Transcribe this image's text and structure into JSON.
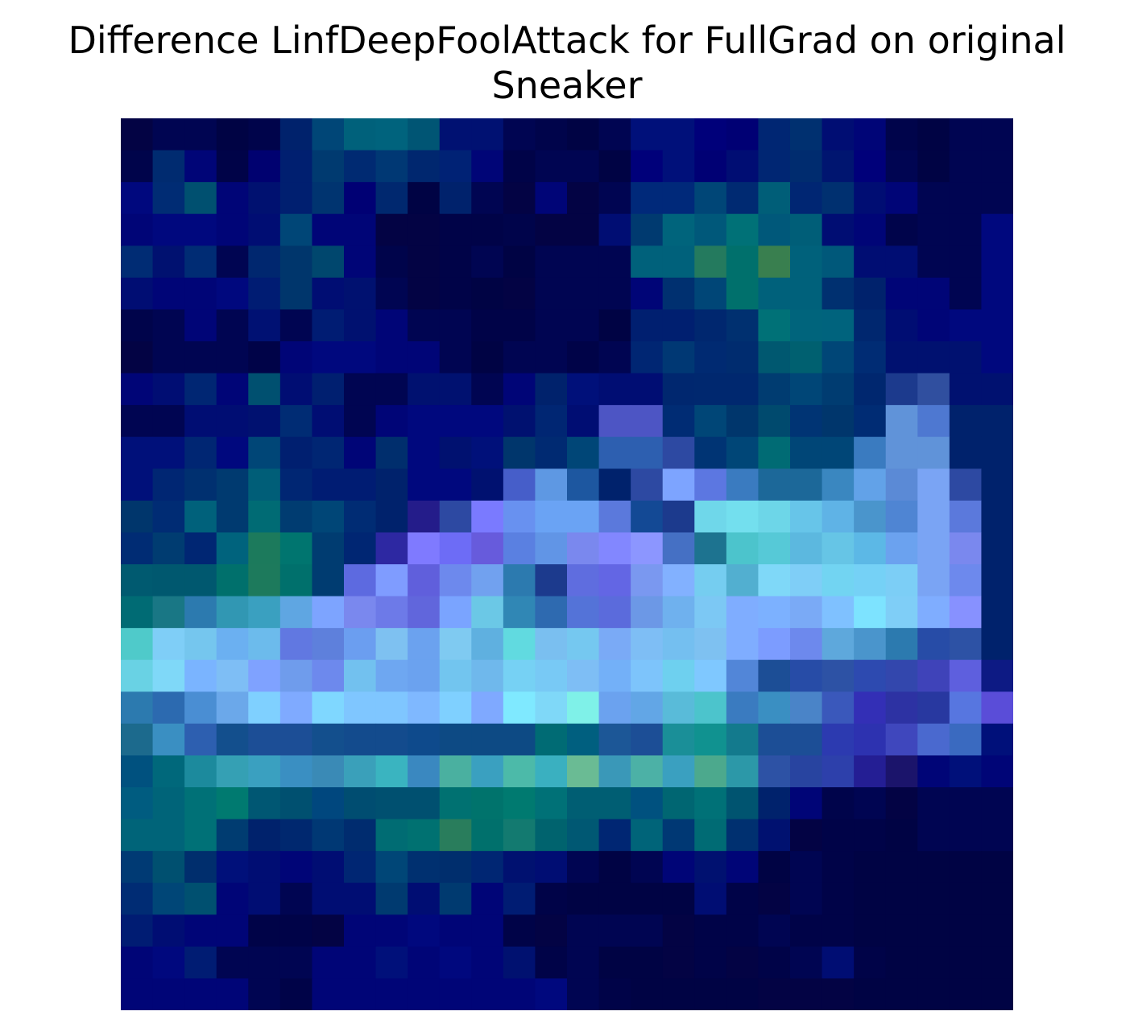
{
  "title": {
    "line1": "Difference LinfDeepFoolAttack for FullGrad on original",
    "line2": "Sneaker"
  },
  "chart_data": {
    "type": "heatmap",
    "title": "Difference LinfDeepFoolAttack for FullGrad on original Sneaker",
    "rows": 28,
    "cols": 28,
    "axes_visible": false,
    "grid": false,
    "colors": [
      [
        "#030344",
        "#000552",
        "#000552",
        "#000344",
        "#00044b",
        "#00226c",
        "#004677",
        "#00617b",
        "#00637d",
        "#005574",
        "#001172",
        "#001172",
        "#000552",
        "#00044b",
        "#000344",
        "#000552",
        "#00107a",
        "#00107a",
        "#00007a",
        "#000074",
        "#002673",
        "#003070",
        "#000d73",
        "#000577",
        "#00044b",
        "#000344",
        "#000552",
        "#000552"
      ],
      [
        "#00044b",
        "#002b70",
        "#000577",
        "#000348",
        "#000170",
        "#001f70",
        "#003a70",
        "#002a72",
        "#003874",
        "#00276f",
        "#002275",
        "#000577",
        "#000348",
        "#000552",
        "#000552",
        "#000344",
        "#00007a",
        "#00107a",
        "#000074",
        "#000d73",
        "#002673",
        "#002c6f",
        "#001570",
        "#00007a",
        "#000552",
        "#000344",
        "#000552",
        "#000552"
      ],
      [
        "#00087e",
        "#002c74",
        "#005070",
        "#000577",
        "#001170",
        "#001f70",
        "#003470",
        "#000074",
        "#00286f",
        "#000344",
        "#00226c",
        "#000552",
        "#030344",
        "#000577",
        "#030344",
        "#000552",
        "#00297a",
        "#00297a",
        "#004677",
        "#002a72",
        "#005e78",
        "#002673",
        "#003070",
        "#000d73",
        "#000577",
        "#000552",
        "#000552",
        "#000552"
      ],
      [
        "#000577",
        "#00087e",
        "#00087e",
        "#000577",
        "#000d73",
        "#004677",
        "#000577",
        "#000577",
        "#030344",
        "#030344",
        "#000348",
        "#000348",
        "#00044b",
        "#030344",
        "#030344",
        "#000d73",
        "#003a70",
        "#00647c",
        "#00587a",
        "#007177",
        "#00587a",
        "#005e78",
        "#000d73",
        "#000577",
        "#00044b",
        "#000552",
        "#000552",
        "#00087e"
      ],
      [
        "#002c74",
        "#001170",
        "#002c74",
        "#000552",
        "#00276f",
        "#00366c",
        "#00476e",
        "#000577",
        "#00044b",
        "#030344",
        "#000348",
        "#000552",
        "#000344",
        "#000552",
        "#000552",
        "#000552",
        "#00617b",
        "#00617b",
        "#247a5e",
        "#00706c",
        "#397f4f",
        "#00617b",
        "#00587a",
        "#000d73",
        "#000d73",
        "#000552",
        "#000552",
        "#00087e"
      ],
      [
        "#000d73",
        "#000577",
        "#000577",
        "#00087e",
        "#001c73",
        "#00366c",
        "#000d73",
        "#001170",
        "#000552",
        "#030344",
        "#000348",
        "#000344",
        "#030344",
        "#000552",
        "#000552",
        "#000552",
        "#000577",
        "#003070",
        "#004677",
        "#00706c",
        "#00617b",
        "#00617b",
        "#003070",
        "#00226c",
        "#000577",
        "#000577",
        "#000552",
        "#00087e"
      ],
      [
        "#00044b",
        "#000552",
        "#000577",
        "#000552",
        "#001173",
        "#000552",
        "#001c73",
        "#001170",
        "#000577",
        "#000552",
        "#000552",
        "#000348",
        "#000348",
        "#000552",
        "#000552",
        "#000344",
        "#001f70",
        "#001f70",
        "#00276f",
        "#003070",
        "#007177",
        "#00647c",
        "#00637d",
        "#00276f",
        "#000d73",
        "#000577",
        "#00087e",
        "#00087e"
      ],
      [
        "#030344",
        "#000552",
        "#000552",
        "#000552",
        "#000348",
        "#000577",
        "#00087e",
        "#00087e",
        "#000577",
        "#000577",
        "#000552",
        "#000344",
        "#000552",
        "#000552",
        "#000348",
        "#000552",
        "#002673",
        "#003874",
        "#002a72",
        "#002c6f",
        "#005870",
        "#006070",
        "#004677",
        "#002c74",
        "#001170",
        "#001170",
        "#001170",
        "#00087e"
      ],
      [
        "#000577",
        "#000d73",
        "#002673",
        "#000577",
        "#005070",
        "#000d73",
        "#001f70",
        "#000552",
        "#000552",
        "#001170",
        "#001170",
        "#000552",
        "#000577",
        "#00226c",
        "#00107a",
        "#000d73",
        "#000d73",
        "#00276f",
        "#00286f",
        "#00286f",
        "#003c71",
        "#004677",
        "#003c71",
        "#00276f",
        "#1c3a8d",
        "#304f9f",
        "#001170",
        "#001170"
      ],
      [
        "#000552",
        "#000552",
        "#000d73",
        "#000d73",
        "#001170",
        "#002c74",
        "#000d73",
        "#000552",
        "#000577",
        "#00087e",
        "#00087e",
        "#00087e",
        "#001170",
        "#002673",
        "#000d73",
        "#4d55c4",
        "#4d55c4",
        "#002c74",
        "#004677",
        "#00366c",
        "#004a6e",
        "#003474",
        "#00366c",
        "#002c74",
        "#6093d9",
        "#4e78d1",
        "#00226c",
        "#00226c"
      ],
      [
        "#00107a",
        "#00107a",
        "#002673",
        "#00087e",
        "#004677",
        "#001f70",
        "#002673",
        "#000577",
        "#002e6d",
        "#00087e",
        "#001170",
        "#00107a",
        "#00366c",
        "#002a72",
        "#004677",
        "#2d5fb0",
        "#2d5fb0",
        "#2d49a2",
        "#003474",
        "#004677",
        "#006b74",
        "#004677",
        "#004677",
        "#3a7bc0",
        "#6093d9",
        "#6093d9",
        "#00226c",
        "#00226c"
      ],
      [
        "#00107a",
        "#002673",
        "#003070",
        "#003a70",
        "#005e78",
        "#002673",
        "#001c73",
        "#001c73",
        "#00226c",
        "#00087e",
        "#00087e",
        "#001170",
        "#465ec9",
        "#5e98e3",
        "#1d57a0",
        "#00226c",
        "#2d49a2",
        "#7da4ff",
        "#5c77e1",
        "#3a7bc0",
        "#1c6899",
        "#1c6899",
        "#3a87c0",
        "#62a2e8",
        "#5b8ad6",
        "#7aa4f4",
        "#2d49a2",
        "#00226c"
      ],
      [
        "#00366c",
        "#002c74",
        "#00617b",
        "#003a70",
        "#006b74",
        "#003c71",
        "#004677",
        "#002c74",
        "#00226c",
        "#241c8a",
        "#2d49a2",
        "#7a7aff",
        "#6891f0",
        "#6aa3f4",
        "#6aa3f4",
        "#5b79dc",
        "#134995",
        "#1c3a8d",
        "#6fd7ea",
        "#73dfee",
        "#6dd6e8",
        "#67c5e9",
        "#5fb3e6",
        "#4a95cc",
        "#4f85d3",
        "#7aa4f4",
        "#5b79dc",
        "#00226c"
      ],
      [
        "#002c74",
        "#003c71",
        "#002673",
        "#00637d",
        "#1c7a5c",
        "#00756f",
        "#003c71",
        "#002673",
        "#2d28a2",
        "#7f7aff",
        "#6d6cf6",
        "#675bdc",
        "#5a80e1",
        "#6195e6",
        "#7a88ee",
        "#8287ff",
        "#8c96ff",
        "#4570c4",
        "#1d7390",
        "#4cc4cc",
        "#56c9d7",
        "#5cb8df",
        "#66c5e6",
        "#5cb8e6",
        "#6ba2ef",
        "#7aa4f4",
        "#7a88ee",
        "#00226c"
      ],
      [
        "#005a70",
        "#00586f",
        "#00586f",
        "#00706c",
        "#1d7a5c",
        "#00706c",
        "#003c71",
        "#5d6ae0",
        "#7f9cff",
        "#605fdc",
        "#6d89ed",
        "#71a1ef",
        "#2c7aaf",
        "#1c3a8d",
        "#5f6ddf",
        "#6366e4",
        "#7a98f0",
        "#82b1ff",
        "#75cdf0",
        "#52afd0",
        "#7fd8f8",
        "#7fcef7",
        "#72d4f2",
        "#75d1f6",
        "#7ccef6",
        "#7aa4f4",
        "#6d89ed",
        "#00226c"
      ],
      [
        "#006b74",
        "#197785",
        "#2c7aaf",
        "#3197b3",
        "#3aa0c0",
        "#5fa6e2",
        "#7da4ff",
        "#7a88ee",
        "#6d7ae8",
        "#6166dc",
        "#7aa4ff",
        "#6bc8e6",
        "#3087b5",
        "#2e6ab0",
        "#5473d8",
        "#5b6bdc",
        "#6c98e6",
        "#6fb1ee",
        "#7cc8f4",
        "#7fadff",
        "#7cb1ff",
        "#7aaaf6",
        "#7fc1ff",
        "#7de3ff",
        "#7fcef7",
        "#7fadff",
        "#8791ff",
        "#00226c"
      ],
      [
        "#4fcaca",
        "#7fcef7",
        "#75c6ee",
        "#6bb0f1",
        "#6cbbec",
        "#6178e1",
        "#5e80dc",
        "#6b9ef0",
        "#7ec1f1",
        "#6ba2ef",
        "#7fcaf1",
        "#5fb0e0",
        "#61dae0",
        "#7abff0",
        "#75c8f0",
        "#7aaaf6",
        "#7ebef5",
        "#74bff0",
        "#7ec1f1",
        "#7fadff",
        "#7c9cff",
        "#6d89ed",
        "#5ea8dc",
        "#4a95cc",
        "#2c7aaf",
        "#274ca7",
        "#2d52a5",
        "#00226c"
      ],
      [
        "#69d2e4",
        "#7fd8f8",
        "#7ab4ff",
        "#7ebef5",
        "#7fa2ff",
        "#6f9cec",
        "#6d89ed",
        "#72c1ef",
        "#6ea7f1",
        "#6ba2ef",
        "#72c5ef",
        "#6fb8ec",
        "#76d1f4",
        "#78c9f5",
        "#7ebef5",
        "#73b0f8",
        "#7dc4fb",
        "#6ed0ef",
        "#7fc8ff",
        "#5286d8",
        "#1c4e96",
        "#274ca7",
        "#2d52a5",
        "#2d4ab0",
        "#3347ad",
        "#3f43b9",
        "#5e5fde",
        "#0d1a84"
      ],
      [
        "#2c7aaf",
        "#2c6ab0",
        "#4a8ed3",
        "#6ba8ea",
        "#7fd0ff",
        "#7faaff",
        "#7fd7ff",
        "#7fc6ff",
        "#7fc6ff",
        "#7fb8ff",
        "#7fd0ff",
        "#7fa9ff",
        "#7fe9ff",
        "#7fd8f8",
        "#7ff1e8",
        "#6ba2ef",
        "#62a6e6",
        "#59bbd9",
        "#4cc4cc",
        "#3a7bc0",
        "#3a8fc2",
        "#4a84c8",
        "#3a58bb",
        "#332fb6",
        "#2d32a3",
        "#2838a0",
        "#5776e0",
        "#5a4dd8"
      ],
      [
        "#1c6a8d",
        "#3a8fc2",
        "#2d5fb0",
        "#134f8d",
        "#1c4e96",
        "#1c4e96",
        "#134f8d",
        "#134b8d",
        "#134b8d",
        "#0e4a8c",
        "#0d4a84",
        "#0d4a84",
        "#0d4a84",
        "#006b74",
        "#005f7f",
        "#1c5797",
        "#1c4e96",
        "#1a8f98",
        "#109290",
        "#137a8d",
        "#1c4e96",
        "#1c4e96",
        "#2c3ab0",
        "#2d32b0",
        "#3f47bd",
        "#4a69cf",
        "#3a6ac0",
        "#00107a"
      ],
      [
        "#00517f",
        "#00687b",
        "#1c8a9d",
        "#35a0b4",
        "#3aa0c0",
        "#3a8fc2",
        "#3a8ab6",
        "#3aa0ba",
        "#3ab4c0",
        "#3a88c0",
        "#4ab0a0",
        "#3aa0c0",
        "#4cbaa9",
        "#3ab0c0",
        "#6abb94",
        "#3a98b8",
        "#4cb1a6",
        "#3aa0c0",
        "#4ca98d",
        "#2c98a8",
        "#2d52a5",
        "#2844a0",
        "#2d40ab",
        "#241e94",
        "#1b146b",
        "#000577",
        "#00107a",
        "#000577"
      ],
      [
        "#005c80",
        "#006479",
        "#007177",
        "#007a70",
        "#005773",
        "#005070",
        "#00477e",
        "#004d71",
        "#005070",
        "#005070",
        "#007171",
        "#00736c",
        "#007a70",
        "#007177",
        "#005e73",
        "#005e73",
        "#00517f",
        "#006672",
        "#007177",
        "#005470",
        "#00226c",
        "#000577",
        "#00044b",
        "#000552",
        "#030344",
        "#000552",
        "#000552",
        "#000552"
      ],
      [
        "#006479",
        "#006479",
        "#007177",
        "#003c71",
        "#00226c",
        "#00286f",
        "#003874",
        "#002c6f",
        "#006c73",
        "#007171",
        "#297d5c",
        "#00706c",
        "#137a70",
        "#00636e",
        "#005873",
        "#002673",
        "#006479",
        "#003874",
        "#006b74",
        "#003070",
        "#001170",
        "#030344",
        "#000348",
        "#000348",
        "#000344",
        "#000552",
        "#000552",
        "#000552"
      ],
      [
        "#003a74",
        "#005070",
        "#002e6d",
        "#00107a",
        "#000d73",
        "#000577",
        "#000d73",
        "#002673",
        "#004677",
        "#003070",
        "#002e6d",
        "#002673",
        "#001170",
        "#000d73",
        "#000552",
        "#000344",
        "#000552",
        "#000577",
        "#001170",
        "#000577",
        "#000344",
        "#000552",
        "#000348",
        "#000344",
        "#000344",
        "#000344",
        "#000344",
        "#000344"
      ],
      [
        "#002c74",
        "#004677",
        "#005070",
        "#000577",
        "#000d73",
        "#000552",
        "#000d73",
        "#000d73",
        "#003a70",
        "#000d73",
        "#003a70",
        "#000577",
        "#001c73",
        "#000348",
        "#000344",
        "#000344",
        "#000344",
        "#000344",
        "#000d73",
        "#000348",
        "#030344",
        "#000552",
        "#000348",
        "#000344",
        "#000344",
        "#000344",
        "#000344",
        "#000344"
      ],
      [
        "#001c73",
        "#000d73",
        "#000577",
        "#000577",
        "#000348",
        "#000348",
        "#030344",
        "#000577",
        "#000577",
        "#00087e",
        "#000577",
        "#000577",
        "#000348",
        "#030344",
        "#000552",
        "#000552",
        "#000552",
        "#030344",
        "#000348",
        "#000348",
        "#000552",
        "#000348",
        "#000348",
        "#000344",
        "#000344",
        "#000344",
        "#000344",
        "#000344"
      ],
      [
        "#000577",
        "#00087e",
        "#001c73",
        "#000552",
        "#000552",
        "#000552",
        "#000577",
        "#000577",
        "#00107a",
        "#000577",
        "#00087e",
        "#000577",
        "#001170",
        "#000348",
        "#000552",
        "#000344",
        "#000344",
        "#030344",
        "#000348",
        "#030344",
        "#000348",
        "#000552",
        "#000d73",
        "#000348",
        "#000344",
        "#000344",
        "#000344",
        "#000344"
      ],
      [
        "#000577",
        "#000577",
        "#000577",
        "#000577",
        "#000552",
        "#000348",
        "#000577",
        "#000577",
        "#000577",
        "#000577",
        "#000577",
        "#000577",
        "#000577",
        "#00087e",
        "#000552",
        "#000348",
        "#000344",
        "#000344",
        "#000344",
        "#000344",
        "#030344",
        "#030344",
        "#030344",
        "#000344",
        "#000344",
        "#000344",
        "#000344",
        "#000344"
      ]
    ]
  }
}
